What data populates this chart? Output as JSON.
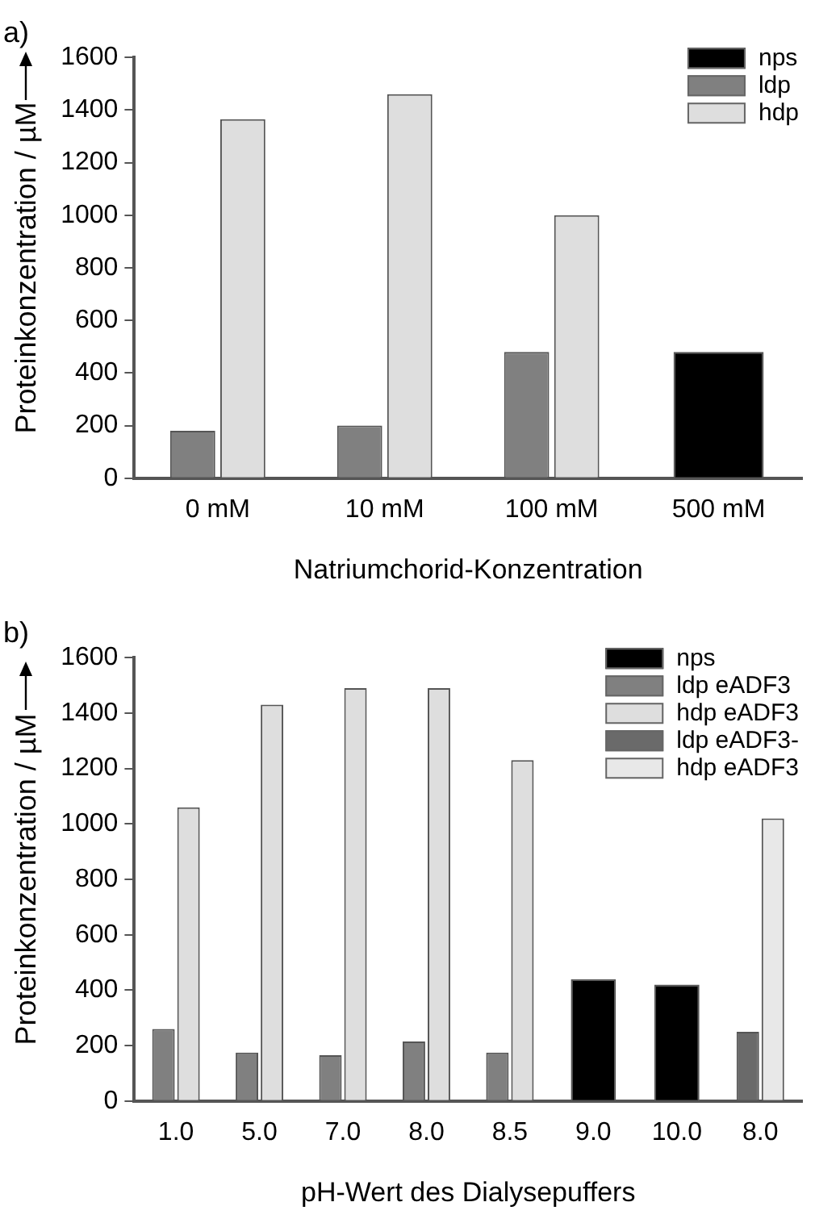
{
  "chart_data": [
    {
      "type": "bar",
      "title": "a)",
      "xlabel": "Natriumchorid-Konzentration",
      "ylabel": "Proteinkonzentration / µM",
      "categories": [
        "0 mM",
        "10 mM",
        "100 mM",
        "500 mM"
      ],
      "series": [
        {
          "name": "nps",
          "color": "#000000",
          "values": [
            null,
            null,
            null,
            480
          ]
        },
        {
          "name": "ldp",
          "color": "#808080",
          "values": [
            180,
            200,
            480,
            null
          ]
        },
        {
          "name": "hdp",
          "color": "#dedede",
          "values": [
            1365,
            1460,
            1000,
            null
          ]
        }
      ],
      "ylim": [
        0,
        1600
      ],
      "yticks": [
        0,
        200,
        400,
        600,
        800,
        1000,
        1200,
        1400,
        1600
      ],
      "grid": false,
      "legend": "top right"
    },
    {
      "type": "bar",
      "title": "b)",
      "xlabel": "pH-Wert des Dialysepuffers",
      "ylabel": "Proteinkonzentration / µM",
      "categories": [
        "1.0",
        "5.0",
        "7.0",
        "8.0",
        "8.5",
        "9.0",
        "10.0",
        "8.0"
      ],
      "series": [
        {
          "name": "nps",
          "color": "#000000",
          "values": [
            null,
            null,
            null,
            null,
            null,
            440,
            420,
            null
          ]
        },
        {
          "name": "ldp eADF3",
          "color": "#808080",
          "values": [
            260,
            175,
            165,
            215,
            175,
            null,
            null,
            null
          ]
        },
        {
          "name": "hdp eADF3",
          "color": "#dedede",
          "values": [
            1060,
            1430,
            1490,
            1490,
            1230,
            null,
            null,
            null
          ]
        },
        {
          "name": "ldp eADF3-",
          "color": "#6a6a6a",
          "values": [
            null,
            null,
            null,
            null,
            null,
            null,
            null,
            250
          ]
        },
        {
          "name": "hdp eADF3",
          "color": "#e8e8e8",
          "values": [
            null,
            null,
            null,
            null,
            null,
            null,
            null,
            1020
          ]
        }
      ],
      "ylim": [
        0,
        1600
      ],
      "yticks": [
        0,
        200,
        400,
        600,
        800,
        1000,
        1200,
        1400,
        1600
      ],
      "grid": false,
      "legend": "top right"
    }
  ]
}
